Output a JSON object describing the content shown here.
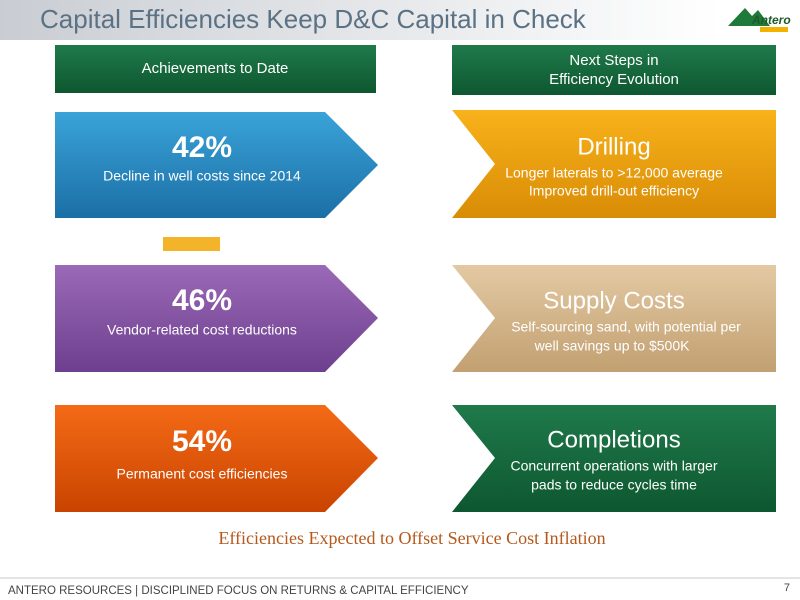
{
  "header": {
    "title": "Capital Efficiencies Keep D&C Capital in Check",
    "logo": "Antero"
  },
  "left_column": {
    "heading": "Achievements to Date",
    "items": [
      {
        "value": "42%",
        "label": "Decline in well costs since 2014"
      },
      {
        "value": "46%",
        "label": "Vendor-related cost reductions"
      },
      {
        "value": "54%",
        "label": "Permanent cost efficiencies"
      }
    ]
  },
  "right_column": {
    "heading": [
      "Next Steps in",
      "Efficiency Evolution"
    ],
    "items": [
      {
        "title": "Drilling",
        "lines": [
          "Longer laterals to >12,000 average",
          "Improved drill-out efficiency"
        ]
      },
      {
        "title": "Supply Costs",
        "lines": [
          "Self-sourcing sand, with potential per",
          "well savings up to $500K"
        ]
      },
      {
        "title": "Completions",
        "lines": [
          "Concurrent operations with larger",
          "pads to reduce cycles time"
        ]
      }
    ]
  },
  "tagline": "Efficiencies Expected to Offset Service Cost Inflation",
  "footer": {
    "text": "ANTERO RESOURCES | DISCIPLINED FOCUS ON RETURNS & CAPITAL EFFICIENCY",
    "page": "7"
  }
}
